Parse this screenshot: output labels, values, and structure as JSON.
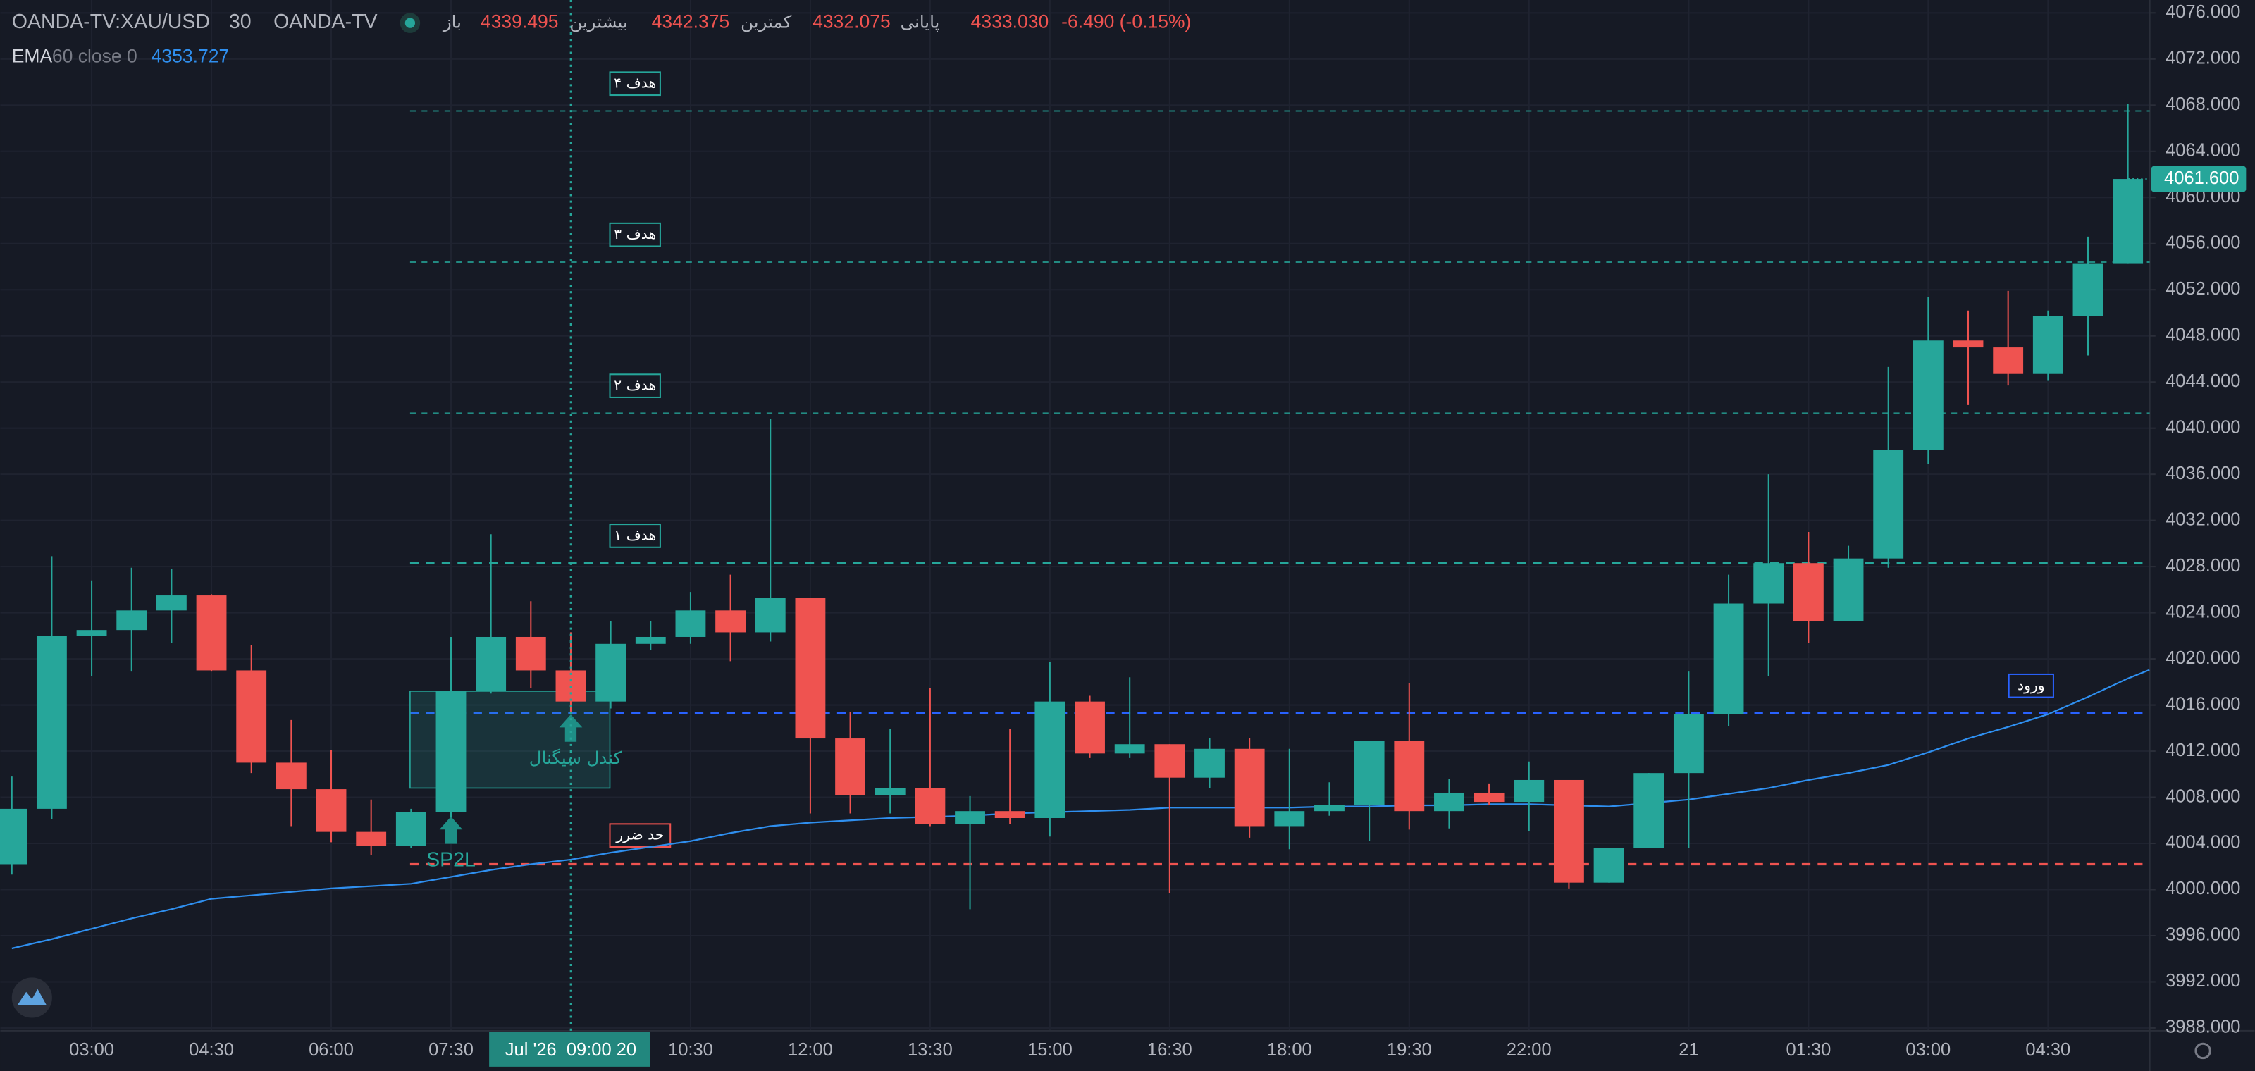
{
  "chart_data": {
    "type": "candlestick",
    "header": {
      "symbol": "OANDA-TV:XAU/USD",
      "interval": "30",
      "source": "OANDA-TV",
      "open_label": "باز",
      "open": 4339.495,
      "high_label": "بیشترین",
      "high": 4342.375,
      "low_label": "کمترین",
      "low": 4332.075,
      "close_label": "پایانی",
      "close": {
        "value": 4333.03,
        "label": "4333.030"
      },
      "change": {
        "value": -6.49,
        "label": "-6.490 (-0.15%)"
      }
    },
    "indicator": {
      "name": "EMA",
      "params": "60 close 0",
      "value": 4353.727,
      "color": "#2f8fef",
      "values": [
        3994.9,
        3995.7,
        3996.6,
        3997.5,
        3998.3,
        3999.2,
        3999.5,
        3999.8,
        4000.1,
        4000.3,
        4000.5,
        4001.1,
        4001.7,
        4002.2,
        4002.6,
        4003.2,
        4003.7,
        4004.2,
        4004.9,
        4005.5,
        4005.8,
        4006.0,
        4006.2,
        4006.3,
        4006.4,
        4006.6,
        4006.7,
        4006.8,
        4006.9,
        4007.1,
        4007.1,
        4007.1,
        4007.1,
        4007.2,
        4007.2,
        4007.3,
        4007.3,
        4007.4,
        4007.4,
        4007.3,
        4007.2,
        4007.5,
        4007.8,
        4008.3,
        4008.8,
        4009.5,
        4010.1,
        4010.8,
        4011.9,
        4013.1,
        4014.1,
        4015.2,
        4016.7,
        4018.3
      ]
    },
    "categories": [
      null,
      null,
      "03:00",
      null,
      null,
      "04:30",
      null,
      null,
      "06:00",
      null,
      null,
      "07:30",
      null,
      null,
      null,
      null,
      null,
      "10:30",
      null,
      null,
      "12:00",
      null,
      null,
      "13:30",
      null,
      null,
      "15:00",
      null,
      null,
      "16:30",
      null,
      null,
      "18:00",
      null,
      null,
      "19:30",
      null,
      null,
      "22:00",
      null,
      null,
      null,
      "21",
      null,
      null,
      "01:30",
      null,
      null,
      "03:00",
      null,
      null,
      "04:30",
      null,
      null
    ],
    "crosshair_label": "Jul '26  09:00 20",
    "open": [
      4002.2,
      4007,
      4022,
      4022.5,
      4024.2,
      4025.5,
      4019,
      4011,
      4008.7,
      4005,
      4003.8,
      4006.7,
      4017.2,
      4021.9,
      4019,
      4016.3,
      4021.3,
      4021.9,
      4024.2,
      4022.3,
      4025.3,
      4013.1,
      4008.2,
      4008.8,
      4005.7,
      4006.8,
      4006.2,
      4016.3,
      4011.8,
      4012.6,
      4009.7,
      4012.2,
      4005.5,
      4006.8,
      4007.3,
      4012.9,
      4006.8,
      4008.4,
      4007.6,
      4009.5,
      4000.6,
      4003.6,
      4010.1,
      4015.2,
      4024.8,
      4028.3,
      4023.3,
      4028.7,
      4038.1,
      4047.6,
      4047,
      4044.7,
      4049.7,
      4054.3
    ],
    "high": [
      4009.8,
      4028.9,
      4026.8,
      4027.9,
      4027.8,
      4025.6,
      4021.2,
      4014.7,
      4012.1,
      4007.8,
      4007,
      4021.9,
      4030.8,
      4025,
      4022.3,
      4023.3,
      4023.3,
      4025.8,
      4027.3,
      4040.8,
      4025.3,
      4015.4,
      4013.9,
      4017.5,
      4008.1,
      4013.9,
      4019.7,
      4016.8,
      4018.4,
      4012.6,
      4013.1,
      4013.1,
      4012.2,
      4009.3,
      4012.9,
      4017.9,
      4009.6,
      4009.2,
      4011.1,
      4009.5,
      4003.6,
      4010.1,
      4018.9,
      4027.3,
      4036,
      4031,
      4029.8,
      4045.3,
      4051.4,
      4050.2,
      4051.9,
      4050.2,
      4056.6,
      4068.1
    ],
    "low": [
      4001.3,
      4006.1,
      4018.5,
      4018.9,
      4021.4,
      4018.9,
      4010.1,
      4005.5,
      4004.1,
      4003,
      4003.6,
      4006.3,
      4017,
      4017.5,
      4015.4,
      4015.7,
      4020.8,
      4021.3,
      4019.8,
      4021.5,
      4006.6,
      4006.6,
      4006.6,
      4005.5,
      3998.3,
      4005.7,
      4004.6,
      4011.4,
      4011.4,
      3999.7,
      4008.8,
      4004.5,
      4003.5,
      4006.4,
      4004.2,
      4005.2,
      4005.3,
      4007.3,
      4005.1,
      4000.1,
      4000.6,
      4003.6,
      4003.6,
      4014.2,
      4018.5,
      4021.4,
      4023.3,
      4027.9,
      4036.9,
      4042,
      4043.7,
      4044.1,
      4046.3,
      4054.3
    ],
    "close": [
      4007,
      4022,
      4022.5,
      4024.2,
      4025.5,
      4019,
      4011,
      4008.7,
      4005,
      4003.8,
      4006.7,
      4017.2,
      4021.9,
      4019,
      4016.3,
      4021.3,
      4021.9,
      4024.2,
      4022.3,
      4025.3,
      4013.1,
      4008.2,
      4008.8,
      4005.7,
      4006.8,
      4006.2,
      4016.3,
      4011.8,
      4012.6,
      4009.7,
      4012.2,
      4005.5,
      4006.8,
      4007.3,
      4012.9,
      4006.8,
      4008.4,
      4007.6,
      4009.5,
      4000.6,
      4003.6,
      4010.1,
      4015.2,
      4024.8,
      4028.3,
      4023.3,
      4028.7,
      4038.1,
      4047.6,
      4047,
      4044.7,
      4049.7,
      4054.3,
      4061.6
    ],
    "up_color": "#26a69a",
    "down_color": "#ef5350",
    "last_price": {
      "value": 4061.6,
      "label": "4061.600"
    },
    "levels": [
      {
        "label": "هدف ۴",
        "value": 4067.5,
        "color": "#26a69a"
      },
      {
        "label": "هدف ۳",
        "value": 4054.4,
        "color": "#26a69a"
      },
      {
        "label": "هدف ۲",
        "value": 4041.3,
        "color": "#26a69a"
      },
      {
        "label": "هدف ۱",
        "value": 4028.3,
        "color": "#26a69a"
      },
      {
        "label": "ورود",
        "value": 4015.3,
        "color": "#2962ff"
      },
      {
        "label": "حد ضرر",
        "value": 4002.2,
        "color": "#ef5350"
      }
    ],
    "signal_box": {
      "label": "کندل سیگنال",
      "top": 4017.2,
      "bottom": 4008.8
    },
    "signal_text": "SP2L",
    "ylim": [
      3987.76,
      4077.12
    ],
    "yticks": [
      {
        "value": 3988,
        "label": "3988.000"
      },
      {
        "value": 3992,
        "label": "3992.000"
      },
      {
        "value": 3996,
        "label": "3996.000"
      },
      {
        "value": 4000,
        "label": "4000.000"
      },
      {
        "value": 4004,
        "label": "4004.000"
      },
      {
        "value": 4008,
        "label": "4008.000"
      },
      {
        "value": 4012,
        "label": "4012.000"
      },
      {
        "value": 4016,
        "label": "4016.000"
      },
      {
        "value": 4020,
        "label": "4020.000"
      },
      {
        "value": 4024,
        "label": "4024.000"
      },
      {
        "value": 4028,
        "label": "4028.000"
      },
      {
        "value": 4032,
        "label": "4032.000"
      },
      {
        "value": 4036,
        "label": "4036.000"
      },
      {
        "value": 4040,
        "label": "4040.000"
      },
      {
        "value": 4044,
        "label": "4044.000"
      },
      {
        "value": 4048,
        "label": "4048.000"
      },
      {
        "value": 4052,
        "label": "4052.000"
      },
      {
        "value": 4056,
        "label": "4056.000"
      },
      {
        "value": 4060,
        "label": "4060.000"
      },
      {
        "value": 4064,
        "label": "4064.000"
      },
      {
        "value": 4068,
        "label": "4068.000"
      },
      {
        "value": 4072,
        "label": "4072.000"
      },
      {
        "value": 4076,
        "label": "4076.000"
      }
    ],
    "grid": true
  }
}
